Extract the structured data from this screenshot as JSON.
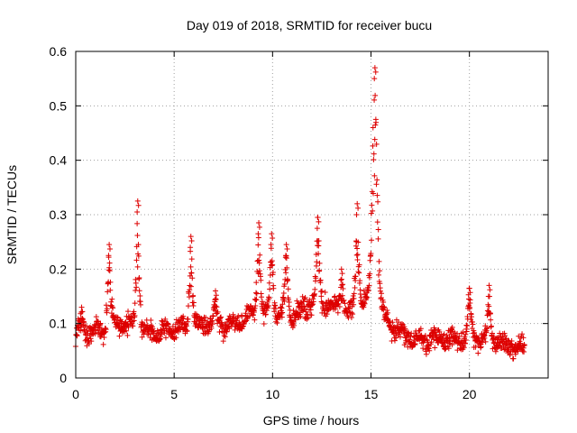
{
  "chart_data": {
    "type": "scatter",
    "title": "Day 019 of 2018, SRMTID for receiver bucu",
    "xlabel": "GPS time / hours",
    "ylabel": "SRMTID / TECUs",
    "xlim": [
      0,
      24
    ],
    "ylim": [
      0,
      0.6
    ],
    "xticks": [
      0,
      5,
      10,
      15,
      20
    ],
    "xtick_labels": [
      "0",
      "5",
      "10",
      "15",
      "20"
    ],
    "yticks": [
      0,
      0.1,
      0.2,
      0.3,
      0.4,
      0.5,
      0.6
    ],
    "ytick_labels": [
      "0",
      "0.1",
      "0.2",
      "0.3",
      "0.4",
      "0.5",
      "0.6"
    ],
    "grid": true,
    "marker": "+",
    "series": [
      {
        "name": "SRMTID",
        "color": "#dd0000",
        "x_range": [
          0,
          22.8
        ],
        "baseline_profile": [
          [
            0.0,
            0.08
          ],
          [
            1.0,
            0.085
          ],
          [
            2.0,
            0.1
          ],
          [
            3.0,
            0.095
          ],
          [
            4.0,
            0.08
          ],
          [
            5.0,
            0.09
          ],
          [
            6.0,
            0.1
          ],
          [
            7.0,
            0.1
          ],
          [
            8.0,
            0.095
          ],
          [
            9.0,
            0.12
          ],
          [
            10.0,
            0.115
          ],
          [
            11.0,
            0.11
          ],
          [
            12.0,
            0.14
          ],
          [
            13.0,
            0.13
          ],
          [
            14.0,
            0.12
          ],
          [
            15.0,
            0.15
          ],
          [
            16.0,
            0.1
          ],
          [
            17.0,
            0.07
          ],
          [
            18.0,
            0.075
          ],
          [
            19.0,
            0.07
          ],
          [
            20.0,
            0.075
          ],
          [
            21.0,
            0.07
          ],
          [
            22.0,
            0.06
          ],
          [
            22.8,
            0.055
          ]
        ],
        "peaks": [
          {
            "x": 0.3,
            "y": 0.13
          },
          {
            "x": 1.7,
            "y": 0.245
          },
          {
            "x": 3.15,
            "y": 0.325
          },
          {
            "x": 5.85,
            "y": 0.26
          },
          {
            "x": 7.1,
            "y": 0.16
          },
          {
            "x": 9.3,
            "y": 0.285
          },
          {
            "x": 9.95,
            "y": 0.265
          },
          {
            "x": 10.7,
            "y": 0.245
          },
          {
            "x": 12.3,
            "y": 0.295
          },
          {
            "x": 13.5,
            "y": 0.2
          },
          {
            "x": 14.3,
            "y": 0.32
          },
          {
            "x": 15.2,
            "y": 0.57
          },
          {
            "x": 20.0,
            "y": 0.165
          },
          {
            "x": 21.0,
            "y": 0.17
          }
        ]
      }
    ]
  }
}
